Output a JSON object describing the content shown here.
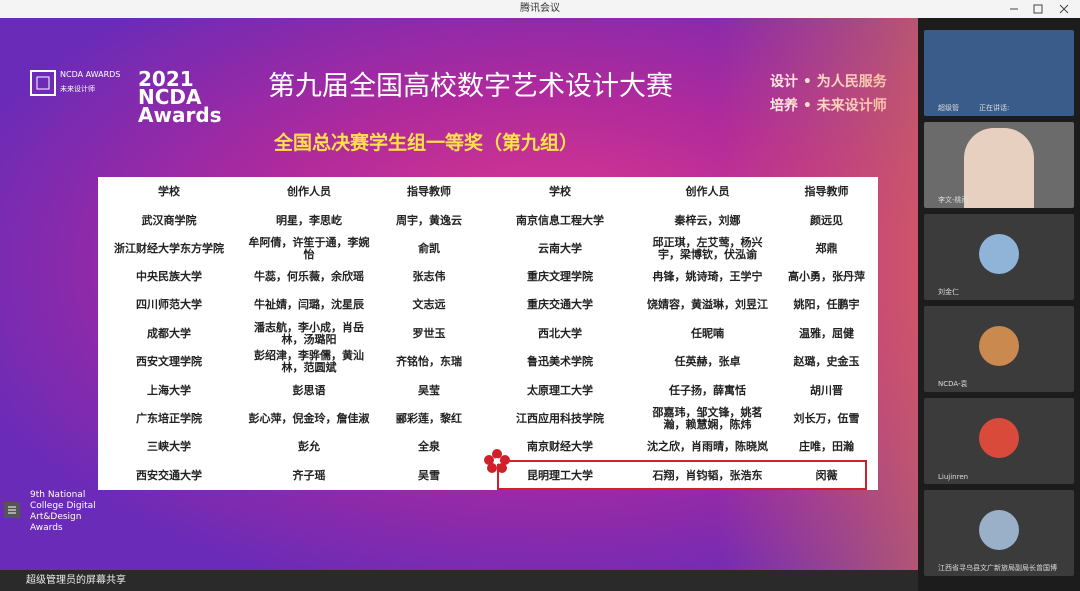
{
  "window": {
    "title": "腾讯会议"
  },
  "slide": {
    "logo_small": "NCDA AWARDS",
    "logo_small_sub": "未来设计师",
    "logo_year": "2021 NCDA Awards",
    "title": "第九届全国高校数字艺术设计大赛",
    "slogans": [
      "设计 • 为人民服务",
      "培养 • 未来设计师"
    ],
    "subtitle": "全国总决赛学生组一等奖（第九组）",
    "footer": "9th National College Digital Art&Design Awards"
  },
  "table": {
    "header": [
      "学校",
      "创作人员",
      "指导教师",
      "学校",
      "创作人员",
      "指导教师"
    ],
    "rows": [
      [
        "武汉商学院",
        "明星，李思屹",
        "周宇，黄逸云",
        "南京信息工程大学",
        "秦梓云，刘娜",
        "颜远见"
      ],
      [
        "浙江财经大学东方学院",
        "牟阿倩，许笙于通，李婉怡",
        "俞凯",
        "云南大学",
        "邱正琪，左艾莺，杨兴宇，梁博钦，伏泓谕",
        "郑鼎"
      ],
      [
        "中央民族大学",
        "牛蕊，何乐薇，余欣瑶",
        "张志伟",
        "重庆文理学院",
        "冉锋，姚诗琦，王学宁",
        "高小勇，张丹萍"
      ],
      [
        "四川师范大学",
        "牛祉婧，闫璐，沈星辰",
        "文志远",
        "重庆交通大学",
        "饶婧容，黄溢琳，刘昱江",
        "姚阳，任鹏宇"
      ],
      [
        "成都大学",
        "潘志航，李小成，肖岳林，汤璐阳",
        "罗世玉",
        "西北大学",
        "任昵喃",
        "温雅，屈健"
      ],
      [
        "西安文理学院",
        "彭绍津，李骅儒，黄汕林，范圆斌",
        "齐铭怡，东瑞",
        "鲁迅美术学院",
        "任英赫，张卓",
        "赵璐，史金玉"
      ],
      [
        "上海大学",
        "彭思语",
        "吴莹",
        "太原理工大学",
        "任子扬，薛寓恬",
        "胡川晋"
      ],
      [
        "广东培正学院",
        "彭心萍，倪金玲，詹佳淑",
        "郦彩莲，黎红",
        "江西应用科技学院",
        "邵嘉玮，邹文锋，姚茗瀚，赖慧娴，陈炜",
        "刘长万，伍雪"
      ],
      [
        "三峡大学",
        "彭允",
        "全泉",
        "南京财经大学",
        "沈之欣，肖雨晴，陈晓岚",
        "庄唯，田瀚"
      ],
      [
        "西安交通大学",
        "齐子瑶",
        "吴雪",
        "昆明理工大学",
        "石翔，肖钧韬，张浩东",
        "闵薇"
      ]
    ]
  },
  "participants": [
    {
      "name": "超级管",
      "status": "正在讲话:"
    },
    {
      "name": "李文-桃雨"
    },
    {
      "name": "刘金仁"
    },
    {
      "name": "NCDA-袁"
    },
    {
      "name": "Liujinren"
    },
    {
      "name": "江西省寻乌县文广新旅局副局长曾国博"
    }
  ],
  "share_bar": {
    "label": "超级管理员的屏幕共享"
  }
}
